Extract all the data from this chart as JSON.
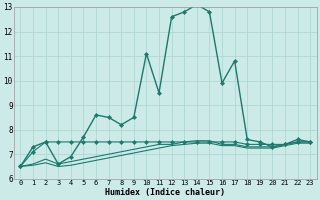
{
  "xlabel": "Humidex (Indice chaleur)",
  "background_color": "#cceae7",
  "grid_color": "#b0d8d4",
  "line_color": "#1a7a6e",
  "xlim": [
    -0.5,
    23.5
  ],
  "ylim": [
    6,
    13
  ],
  "xticks": [
    0,
    1,
    2,
    3,
    4,
    5,
    6,
    7,
    8,
    9,
    10,
    11,
    12,
    13,
    14,
    15,
    16,
    17,
    18,
    19,
    20,
    21,
    22,
    23
  ],
  "yticks": [
    6,
    7,
    8,
    9,
    10,
    11,
    12,
    13
  ],
  "lines": [
    {
      "x": [
        0,
        1,
        2,
        3,
        4,
        5,
        6,
        7,
        8,
        9,
        10,
        11,
        12,
        13,
        14,
        15,
        16,
        17,
        18,
        19,
        20,
        21,
        22,
        23
      ],
      "y": [
        6.5,
        7.3,
        7.5,
        6.6,
        6.9,
        7.7,
        8.6,
        8.5,
        8.2,
        8.5,
        11.1,
        9.5,
        12.6,
        12.8,
        13.1,
        12.8,
        9.9,
        10.8,
        7.6,
        7.5,
        7.3,
        7.4,
        7.6,
        7.5
      ],
      "marker": true,
      "linewidth": 1.0
    },
    {
      "x": [
        0,
        1,
        2,
        3,
        4,
        5,
        6,
        7,
        8,
        9,
        10,
        11,
        12,
        13,
        14,
        15,
        16,
        17,
        18,
        19,
        20,
        21,
        22,
        23
      ],
      "y": [
        6.5,
        7.1,
        7.5,
        7.5,
        7.5,
        7.5,
        7.5,
        7.5,
        7.5,
        7.5,
        7.5,
        7.5,
        7.5,
        7.5,
        7.5,
        7.5,
        7.5,
        7.5,
        7.4,
        7.4,
        7.4,
        7.4,
        7.5,
        7.5
      ],
      "marker": true,
      "linewidth": 0.8
    },
    {
      "x": [
        0,
        1,
        2,
        3,
        4,
        5,
        6,
        7,
        8,
        9,
        10,
        11,
        12,
        13,
        14,
        15,
        16,
        17,
        18,
        19,
        20,
        21,
        22,
        23
      ],
      "y": [
        6.5,
        6.6,
        6.8,
        6.6,
        6.7,
        6.8,
        6.9,
        7.0,
        7.1,
        7.2,
        7.3,
        7.4,
        7.4,
        7.5,
        7.55,
        7.55,
        7.4,
        7.4,
        7.3,
        7.3,
        7.3,
        7.4,
        7.5,
        7.5
      ],
      "marker": false,
      "linewidth": 0.8
    },
    {
      "x": [
        0,
        1,
        2,
        3,
        4,
        5,
        6,
        7,
        8,
        9,
        10,
        11,
        12,
        13,
        14,
        15,
        16,
        17,
        18,
        19,
        20,
        21,
        22,
        23
      ],
      "y": [
        6.5,
        6.55,
        6.65,
        6.5,
        6.55,
        6.65,
        6.75,
        6.85,
        6.95,
        7.05,
        7.15,
        7.25,
        7.35,
        7.4,
        7.45,
        7.45,
        7.35,
        7.35,
        7.25,
        7.25,
        7.25,
        7.35,
        7.45,
        7.45
      ],
      "marker": false,
      "linewidth": 0.8
    }
  ]
}
